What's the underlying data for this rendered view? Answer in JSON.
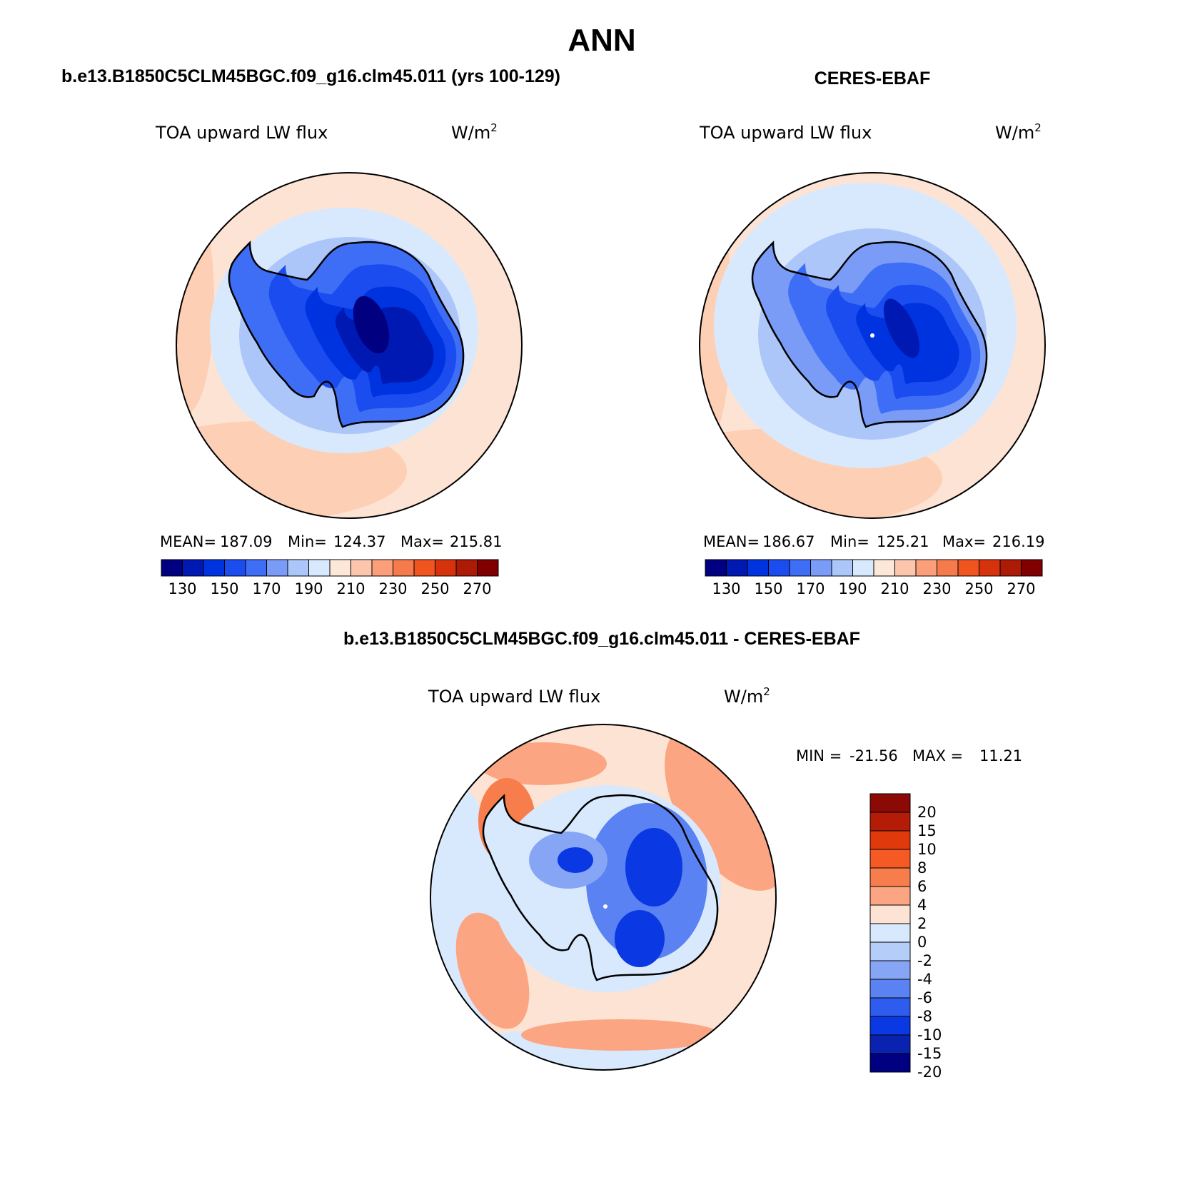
{
  "page": {
    "title": "ANN"
  },
  "panels": [
    {
      "id": "model",
      "heading": "b.e13.B1850C5CLM45BGC.f09_g16.clm45.011 (yrs 100-129)",
      "variable": "TOA upward LW flux",
      "units_base": "W/m",
      "units_sup": "2",
      "stats": {
        "mean_label": "MEAN=",
        "mean": "187.09",
        "min_label": "Min=",
        "min": "124.37",
        "max_label": "Max=",
        "max": "215.81"
      },
      "colorbar": {
        "colors": [
          "#000080",
          "#0019b3",
          "#0033e0",
          "#1a4cf0",
          "#3d6ef5",
          "#7a9cf7",
          "#adc6fa",
          "#d9e9fd",
          "#fde8d8",
          "#fcc6ad",
          "#fa9f7a",
          "#f57a4c",
          "#f0541f",
          "#d6330d",
          "#ad1a05",
          "#800000"
        ],
        "labels": [
          "130",
          "150",
          "170",
          "190",
          "210",
          "230",
          "250",
          "270"
        ]
      },
      "map_colors": {
        "outer": "#fde3d3",
        "rim": "#fcc9ae",
        "sea_ice": "#d9e9fd",
        "coast": "#adc6fa",
        "edge": "#3d6ef5",
        "slope": "#1a4cf0",
        "plateau": "#0033e0",
        "dome": "#0019b3",
        "summit": "#000080"
      }
    },
    {
      "id": "obs",
      "heading": "CERES-EBAF",
      "variable": "TOA upward LW flux",
      "units_base": "W/m",
      "units_sup": "2",
      "stats": {
        "mean_label": "MEAN=",
        "mean": "186.67",
        "min_label": "Min=",
        "min": "125.21",
        "max_label": "Max=",
        "max": "216.19"
      },
      "colorbar": {
        "colors": [
          "#000080",
          "#0019b3",
          "#0033e0",
          "#1a4cf0",
          "#3d6ef5",
          "#7a9cf7",
          "#adc6fa",
          "#d9e9fd",
          "#fde8d8",
          "#fcc6ad",
          "#fa9f7a",
          "#f57a4c",
          "#f0541f",
          "#d6330d",
          "#ad1a05",
          "#800000"
        ],
        "labels": [
          "130",
          "150",
          "170",
          "190",
          "210",
          "230",
          "250",
          "270"
        ]
      },
      "map_colors": {
        "outer": "#fde3d3",
        "rim": "#fcc9ae",
        "sea_ice": "#d9e9fd",
        "coast": "#adc6fa",
        "edge": "#7a9cf7",
        "slope": "#3d6ef5",
        "plateau": "#1a4cf0",
        "dome": "#0033e0",
        "summit": "#0019b3"
      }
    }
  ],
  "diff": {
    "heading": "b.e13.B1850C5CLM45BGC.f09_g16.clm45.011 - CERES-EBAF",
    "variable": "TOA upward LW flux",
    "units_base": "W/m",
    "units_sup": "2",
    "stats": {
      "min_label": "MIN =",
      "min": "-21.56",
      "max_label": "MAX =",
      "max": "11.21"
    },
    "colorbar": {
      "colors": [
        "#8b0a05",
        "#b51c08",
        "#e03a0c",
        "#f55a24",
        "#f77e4c",
        "#fba583",
        "#fde3d3",
        "#d9e9fd",
        "#b4cdf9",
        "#86a6f5",
        "#5a82f2",
        "#2e5cee",
        "#0a38e2",
        "#0a22b0",
        "#000080"
      ],
      "labels": [
        "20",
        "15",
        "10",
        "8",
        "6",
        "4",
        "2",
        "0",
        "-2",
        "-4",
        "-6",
        "-8",
        "-10",
        "-15",
        "-20"
      ]
    },
    "map_colors": {
      "base": "#fde3d3",
      "light": "#d9e9fd",
      "pink": "#fba583",
      "orange": "#f77e4c",
      "red": "#e03a0c",
      "blue": "#5a82f2",
      "deep": "#0a38e2",
      "mid": "#86a6f5"
    }
  }
}
